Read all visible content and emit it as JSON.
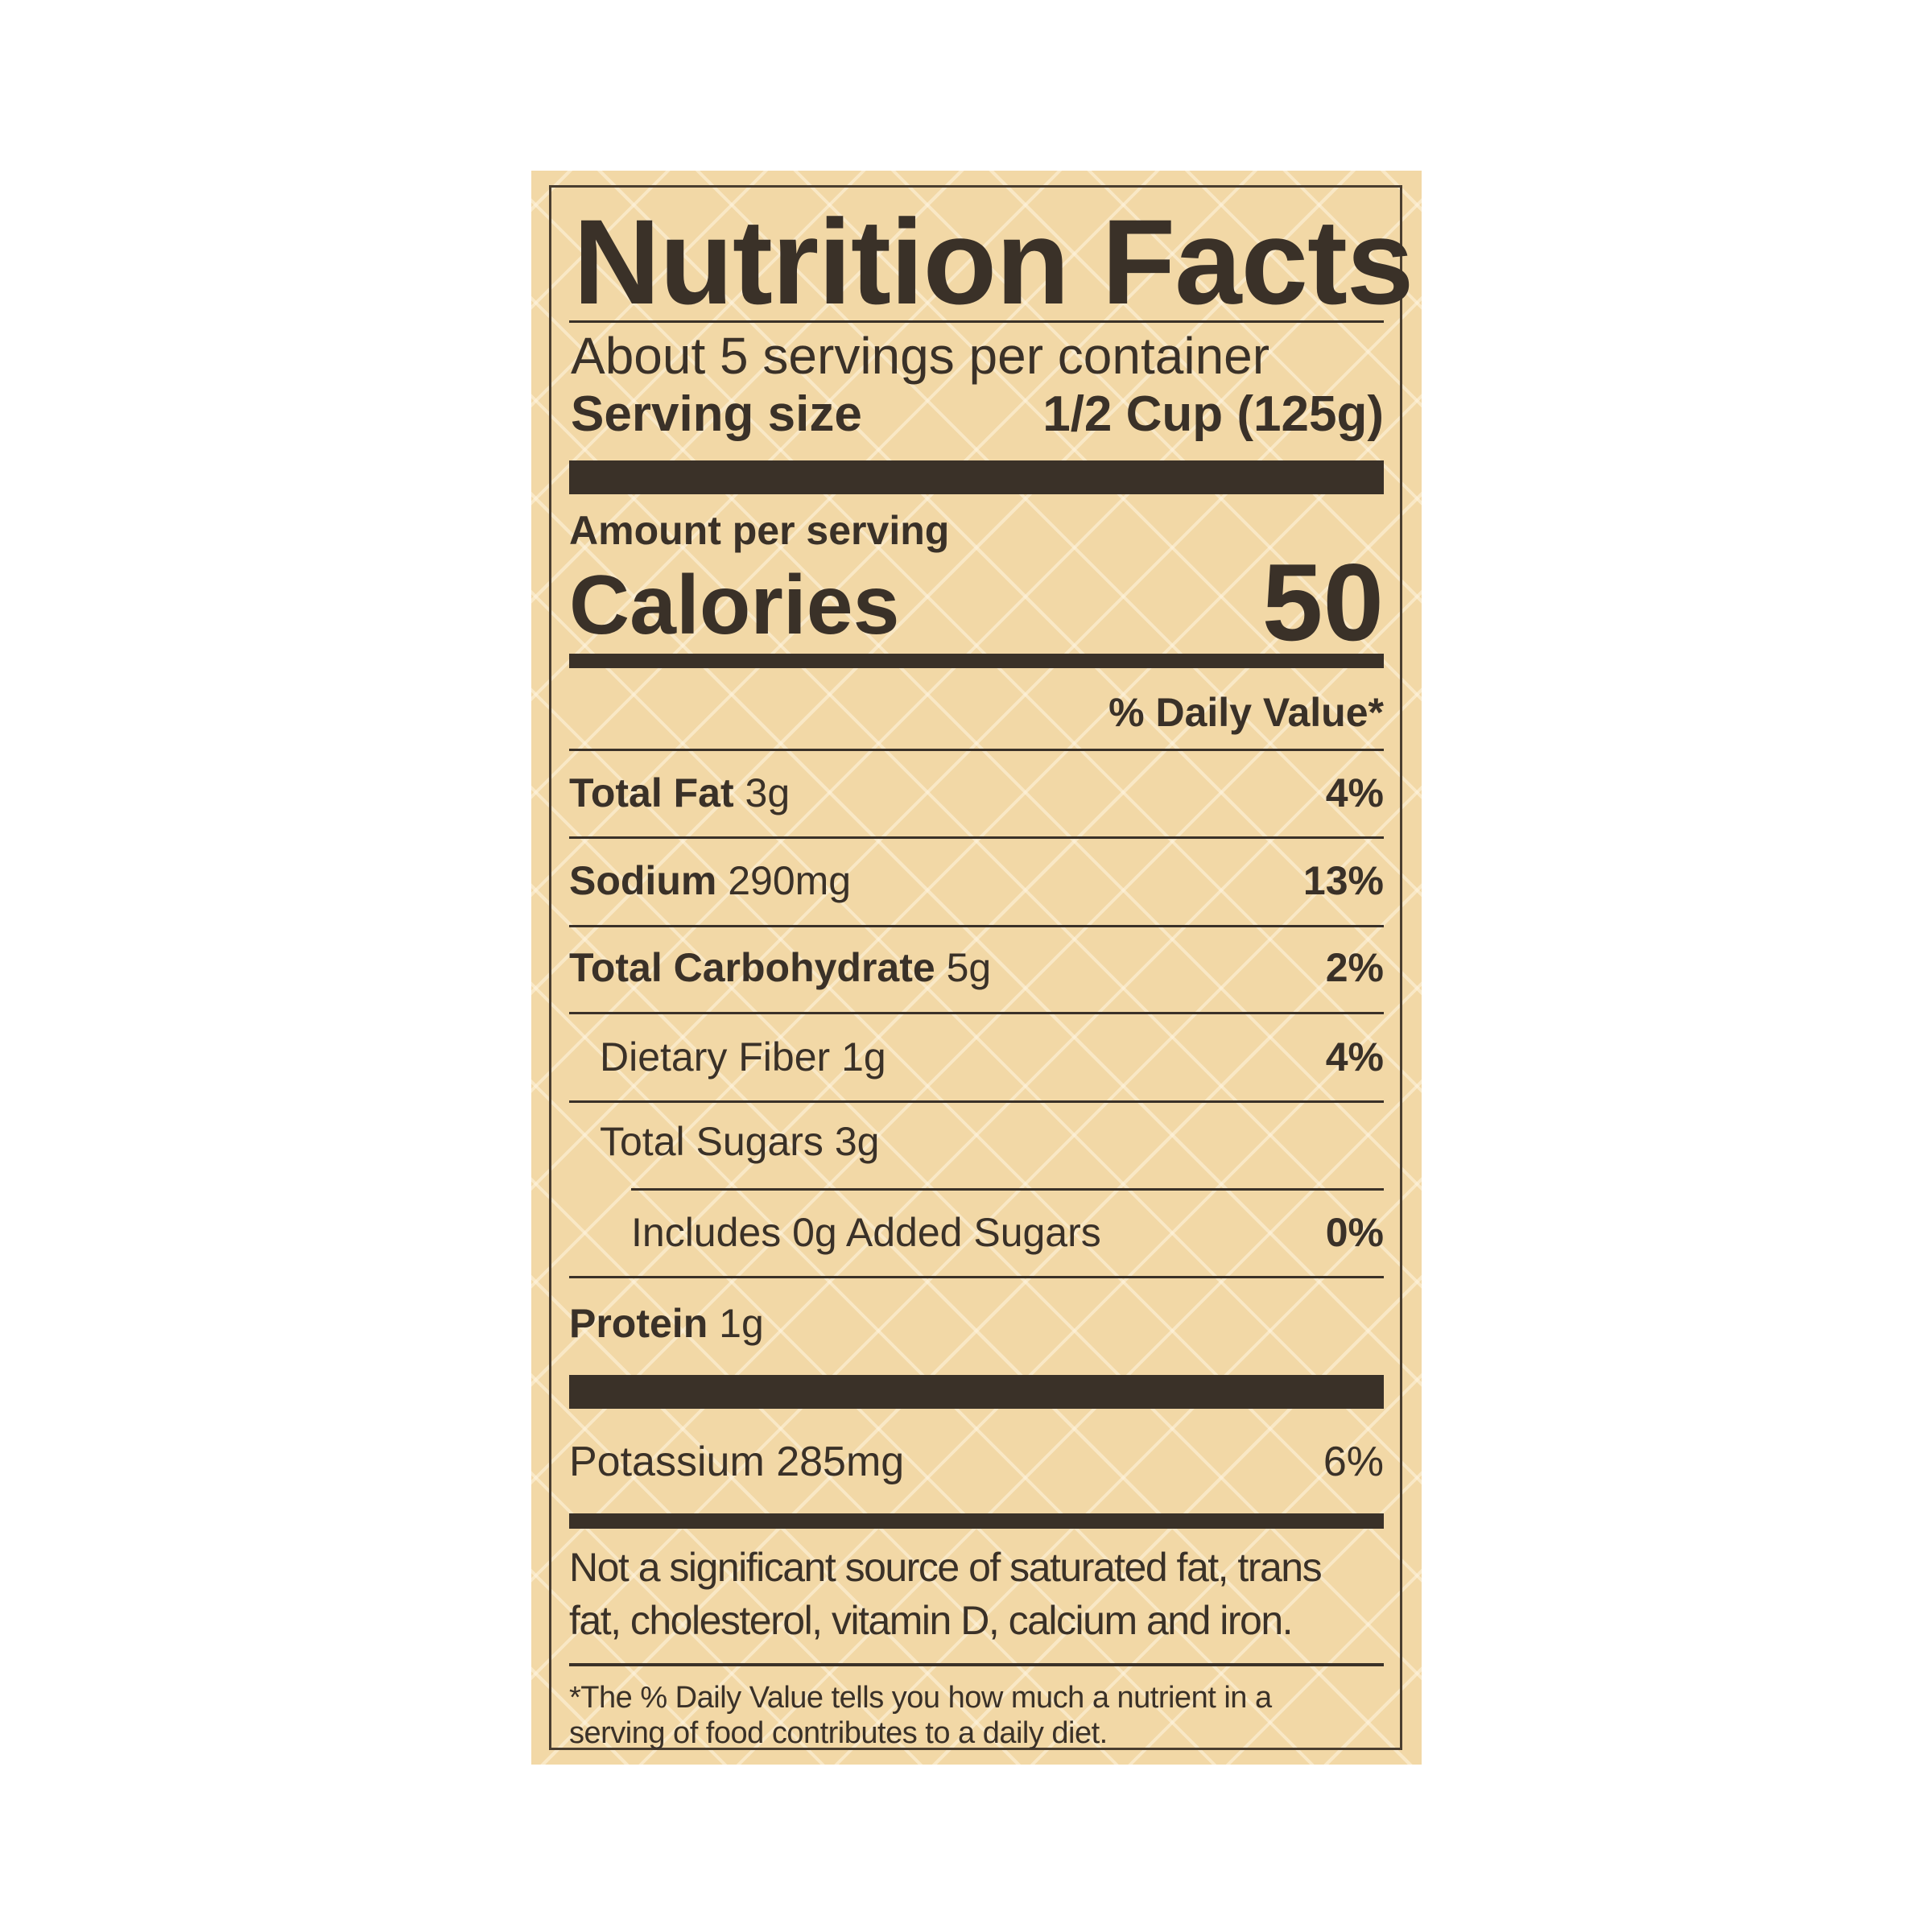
{
  "title": "Nutrition Facts",
  "servings_per_container": "About 5 servings per container",
  "serving_size": {
    "label": "Serving size",
    "value": "1/2 Cup (125g)"
  },
  "amount_per_serving": "Amount per serving",
  "calories": {
    "label": "Calories",
    "value": "50"
  },
  "daily_value_header": "% Daily Value*",
  "nutrients": [
    {
      "name": "Total Fat",
      "amount": "3g",
      "dv": "4%"
    },
    {
      "name": "Sodium",
      "amount": "290mg",
      "dv": "13%"
    },
    {
      "name": "Total Carbohydrate",
      "amount": "5g",
      "dv": "2%"
    },
    {
      "name": "Dietary Fiber",
      "amount": "1g",
      "dv": "4%"
    },
    {
      "name": "Total Sugars",
      "amount": "3g",
      "dv": ""
    },
    {
      "name": "Includes 0g Added Sugars",
      "amount": "",
      "dv": "0%"
    },
    {
      "name": "Protein",
      "amount": "1g",
      "dv": ""
    }
  ],
  "potassium": {
    "label": "Potassium 285mg",
    "dv": "6%"
  },
  "not_significant": [
    "Not a significant source of saturated fat, trans",
    "fat, cholesterol, vitamin D, calcium and iron."
  ],
  "footnote": [
    "*The % Daily Value tells you how much a nutrient in a",
    "serving of food contributes to a daily diet."
  ],
  "colors": {
    "background": "#f2d8a6",
    "ink": "#3a3128"
  }
}
